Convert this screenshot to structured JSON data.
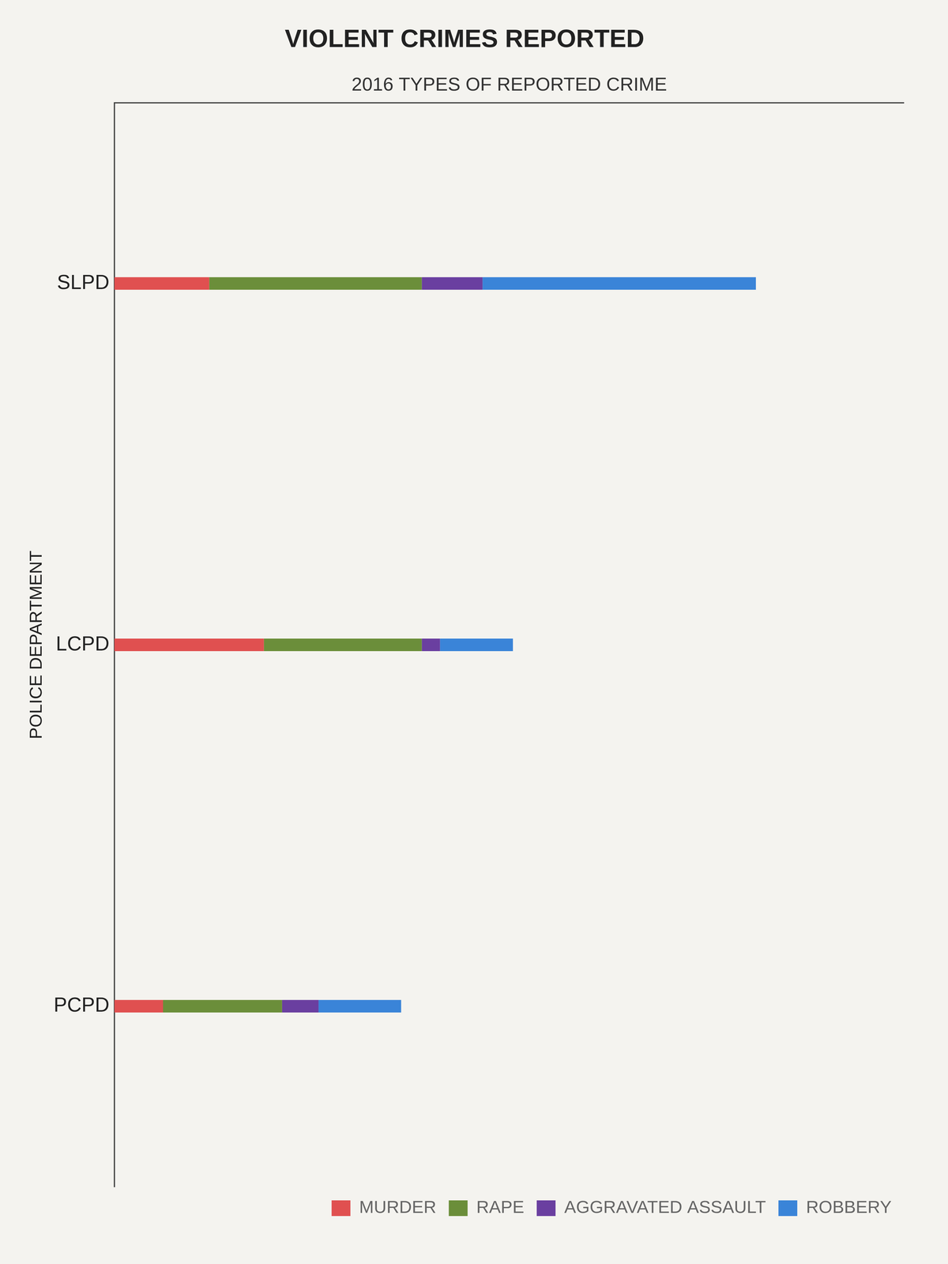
{
  "chart_data": {
    "type": "bar",
    "orientation": "horizontal",
    "stacked": true,
    "title": "VIOLENT CRIMES REPORTED",
    "y_label": "POLICE DEPARTMENT",
    "x_label": "2016 TYPES OF REPORTED CRIME",
    "categories": [
      "SLPD",
      "LCPD",
      "PCPD"
    ],
    "series": [
      {
        "name": "MURDER",
        "color": "#e05050",
        "values": [
          78,
          123,
          40
        ]
      },
      {
        "name": "RAPE",
        "color": "#6b8e3a",
        "values": [
          175,
          130,
          98
        ]
      },
      {
        "name": "AGGRAVATED ASSAULT",
        "color": "#6a3fa0",
        "values": [
          50,
          15,
          30
        ]
      },
      {
        "name": "ROBBERY",
        "color": "#3a84d8",
        "values": [
          225,
          60,
          68
        ]
      }
    ],
    "xlim": [
      0,
      650
    ],
    "xticks": [],
    "tick_labels": "y",
    "grid": false,
    "legend": "bottom-right"
  }
}
